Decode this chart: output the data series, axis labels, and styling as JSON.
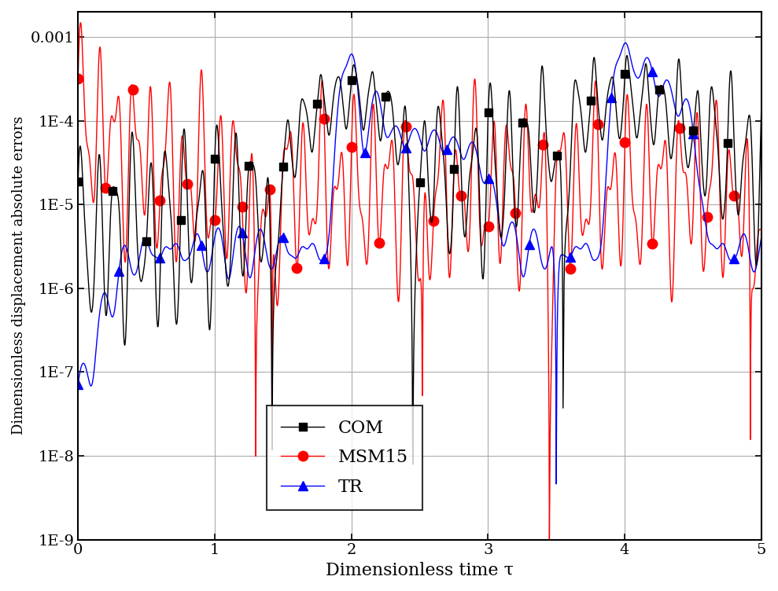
{
  "xlabel": "Dimensionless time τ",
  "ylabel": "Dimensionless displacement absolute errors",
  "xlim": [
    0,
    5
  ],
  "ylim": [
    1e-09,
    0.002
  ],
  "yticks": [
    1e-09,
    1e-08,
    1e-07,
    1e-06,
    1e-05,
    0.0001,
    0.001
  ],
  "ytick_labels": [
    "1E-9",
    "1E-8",
    "1E-7",
    "1E-6",
    "1E-5",
    "1E-4",
    "0.001"
  ],
  "xticks": [
    0,
    1,
    2,
    3,
    4,
    5
  ],
  "grid_color": "#aaaaaa",
  "com_color": "#000000",
  "msm_color": "#ff0000",
  "tr_color": "#0000ff",
  "legend_labels": [
    "COM",
    "MSM15",
    "TR"
  ],
  "n_points": 2000,
  "xlabel_fontsize": 16,
  "ylabel_fontsize": 13,
  "tick_fontsize": 14,
  "legend_fontsize": 16,
  "lw": 1.0
}
